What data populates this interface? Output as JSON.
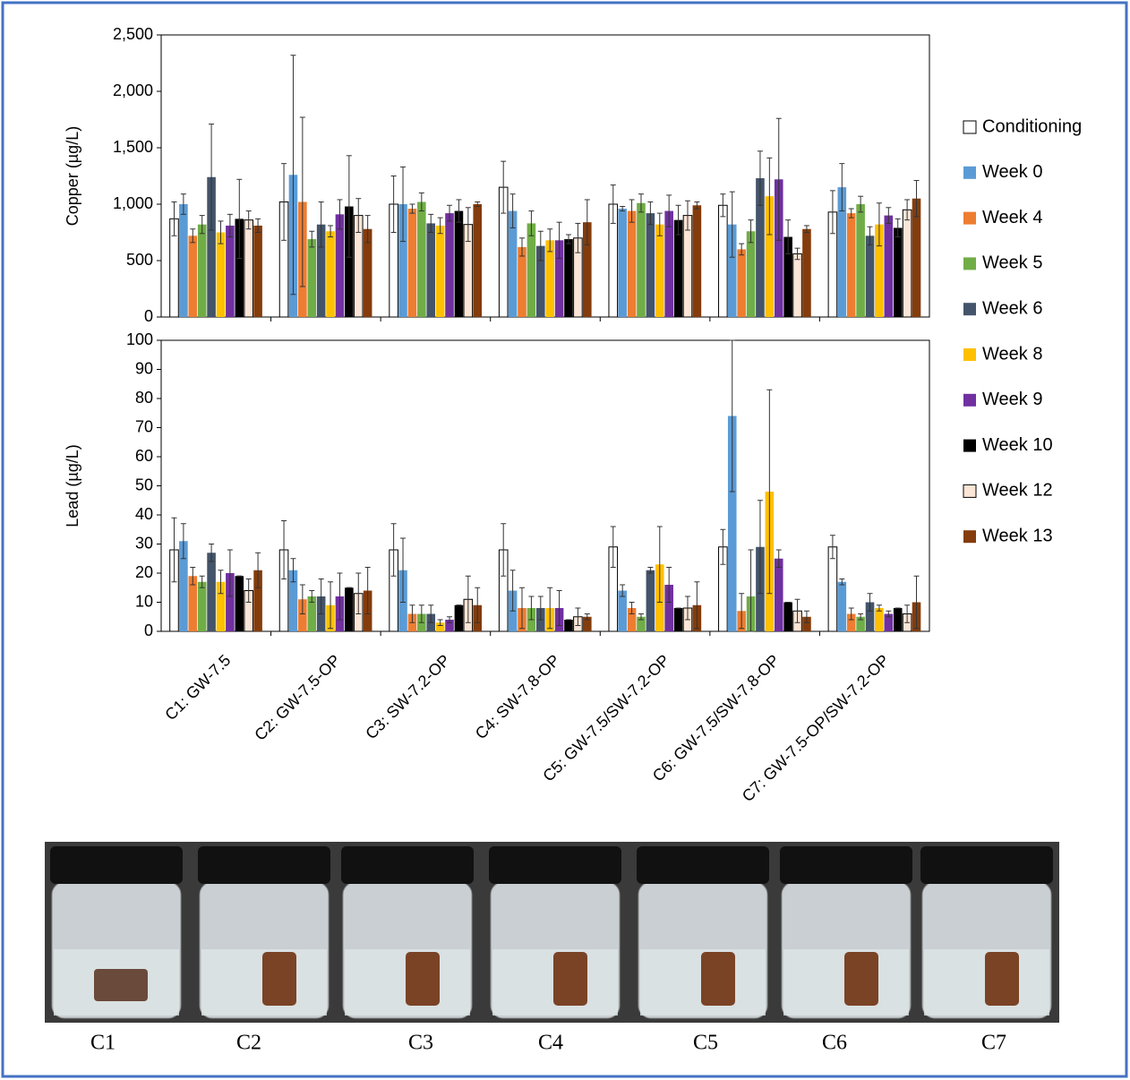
{
  "chart_data": [
    {
      "type": "bar",
      "ylabel": "Copper (µg/L)",
      "ylim": [
        0,
        2500
      ],
      "yticks": [
        0,
        500,
        {
          "value": 1000,
          "label": "1,000"
        },
        {
          "value": 1500,
          "label": "1,500"
        },
        {
          "value": 2000,
          "label": "2,000"
        },
        {
          "value": 2500,
          "label": "2,500"
        }
      ],
      "error_bars": true,
      "series": [
        {
          "name": "Conditioning",
          "color": "#ffffff",
          "edgecolor": "#000000",
          "values": [
            870,
            1020,
            1000,
            1150,
            1000,
            990,
            930
          ],
          "errors": [
            150,
            340,
            250,
            230,
            170,
            100,
            190
          ]
        },
        {
          "name": "Week 0",
          "color": "#5b9bd5",
          "values": [
            1000,
            1260,
            1000,
            940,
            960,
            820,
            1150
          ],
          "errors": [
            90,
            1060,
            330,
            150,
            20,
            290,
            210
          ]
        },
        {
          "name": "Week 4",
          "color": "#ed7d31",
          "values": [
            720,
            1020,
            960,
            620,
            940,
            600,
            920
          ],
          "errors": [
            60,
            750,
            40,
            80,
            100,
            50,
            40
          ]
        },
        {
          "name": "Week 5",
          "color": "#70ad47",
          "values": [
            820,
            690,
            1020,
            830,
            1010,
            760,
            1000
          ],
          "errors": [
            80,
            70,
            80,
            110,
            80,
            100,
            70
          ]
        },
        {
          "name": "Week 6",
          "color": "#44546a",
          "values": [
            1240,
            820,
            830,
            630,
            920,
            1230,
            720
          ],
          "errors": [
            470,
            200,
            80,
            130,
            100,
            240,
            80
          ]
        },
        {
          "name": "Week 8",
          "color": "#ffc000",
          "values": [
            750,
            760,
            810,
            680,
            820,
            1070,
            820
          ],
          "errors": [
            100,
            50,
            70,
            100,
            100,
            340,
            190
          ]
        },
        {
          "name": "Week 9",
          "color": "#7030a0",
          "values": [
            810,
            910,
            920,
            680,
            940,
            1220,
            900
          ],
          "errors": [
            100,
            130,
            70,
            160,
            140,
            540,
            70
          ]
        },
        {
          "name": "Week 10",
          "color": "#000000",
          "values": [
            870,
            980,
            940,
            690,
            860,
            710,
            790
          ],
          "errors": [
            350,
            450,
            100,
            40,
            130,
            150,
            80
          ]
        },
        {
          "name": "Week 12",
          "color": "#fbe5d6",
          "edgecolor": "#000000",
          "values": [
            860,
            900,
            820,
            700,
            900,
            560,
            950
          ],
          "errors": [
            80,
            150,
            150,
            130,
            130,
            50,
            90
          ]
        },
        {
          "name": "Week 13",
          "color": "#843c0c",
          "values": [
            810,
            780,
            1000,
            840,
            990,
            780,
            1050
          ],
          "errors": [
            60,
            120,
            20,
            200,
            30,
            30,
            160
          ]
        }
      ]
    },
    {
      "type": "bar",
      "ylabel": "Lead (µg/L)",
      "ylim": [
        0,
        100
      ],
      "yticks": [
        0,
        10,
        20,
        30,
        40,
        50,
        60,
        70,
        80,
        90,
        100
      ],
      "error_bars": true,
      "categories": [
        "C1: GW-7.5",
        "C2: GW-7.5-OP",
        "C3: SW-7.2-OP",
        "C4: SW-7.8-OP",
        "C5: GW-7.5/SW-7.2-OP",
        "C6: GW-7.5/SW-7.8-OP",
        "C7: GW-7.5-OP/SW-7.2-OP"
      ],
      "series": [
        {
          "color": "#ffffff",
          "edgecolor": "#000000",
          "values": [
            28,
            28,
            28,
            28,
            29,
            29,
            29
          ],
          "errors": [
            11,
            10,
            9,
            9,
            7,
            6,
            4
          ]
        },
        {
          "color": "#5b9bd5",
          "values": [
            31,
            21,
            21,
            14,
            14,
            74,
            17
          ],
          "errors": [
            6,
            4,
            11,
            7,
            2,
            26,
            1
          ]
        },
        {
          "color": "#ed7d31",
          "values": [
            19,
            11,
            6,
            8,
            8,
            7,
            6
          ],
          "errors": [
            3,
            5,
            3,
            7,
            2,
            6,
            2
          ]
        },
        {
          "color": "#70ad47",
          "values": [
            17,
            12,
            6,
            8,
            5,
            12,
            5
          ],
          "errors": [
            2,
            2,
            3,
            4,
            1,
            16,
            1
          ]
        },
        {
          "color": "#44546a",
          "values": [
            27,
            12,
            6,
            8,
            21,
            29,
            10
          ],
          "errors": [
            3,
            6,
            3,
            4,
            1,
            16,
            3
          ]
        },
        {
          "color": "#ffc000",
          "values": [
            17,
            9,
            3,
            8,
            23,
            48,
            8
          ],
          "errors": [
            4,
            8,
            1,
            7,
            13,
            35,
            1
          ]
        },
        {
          "color": "#7030a0",
          "values": [
            20,
            12,
            4,
            8,
            16,
            25,
            6
          ],
          "errors": [
            8,
            8,
            1,
            6,
            6,
            3,
            1
          ]
        },
        {
          "color": "#000000",
          "values": [
            19,
            15,
            9,
            4,
            8,
            10,
            8
          ],
          "errors": [
            0,
            0,
            0,
            0,
            0,
            0,
            0
          ]
        },
        {
          "color": "#fbe5d6",
          "edgecolor": "#000000",
          "values": [
            14,
            13,
            11,
            5,
            8,
            7,
            6
          ],
          "errors": [
            4,
            7,
            8,
            3,
            4,
            4,
            3
          ]
        },
        {
          "color": "#843c0c",
          "values": [
            21,
            14,
            9,
            5,
            9,
            5,
            10
          ],
          "errors": [
            6,
            8,
            6,
            1,
            8,
            2,
            9
          ]
        }
      ]
    }
  ],
  "photos": {
    "labels": [
      "C1",
      "C2",
      "C3",
      "C4",
      "C5",
      "C6",
      "C7"
    ]
  }
}
